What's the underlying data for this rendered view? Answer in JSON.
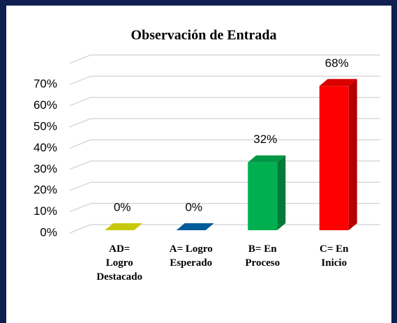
{
  "chart_data": {
    "type": "bar3d",
    "title": "Observación de Entrada",
    "categories": [
      "AD= Logro Destacado",
      "A= Logro Esperado",
      "B= En Proceso",
      "C= En Inicio"
    ],
    "values": [
      0,
      0,
      32,
      68
    ],
    "value_labels": [
      "0%",
      "0%",
      "32%",
      "68%"
    ],
    "colors": [
      "#c8c80a",
      "#005b9a",
      "#00b050",
      "#ff0000"
    ],
    "ylim": [
      0,
      80
    ],
    "yticks": [
      {
        "value": 0,
        "label": "0%"
      },
      {
        "value": 10,
        "label": "10%"
      },
      {
        "value": 20,
        "label": "20%"
      },
      {
        "value": 30,
        "label": "30%"
      },
      {
        "value": 40,
        "label": "40%"
      },
      {
        "value": 50,
        "label": "50%"
      },
      {
        "value": 60,
        "label": "60%"
      },
      {
        "value": 70,
        "label": "70%"
      }
    ],
    "grid": true
  }
}
